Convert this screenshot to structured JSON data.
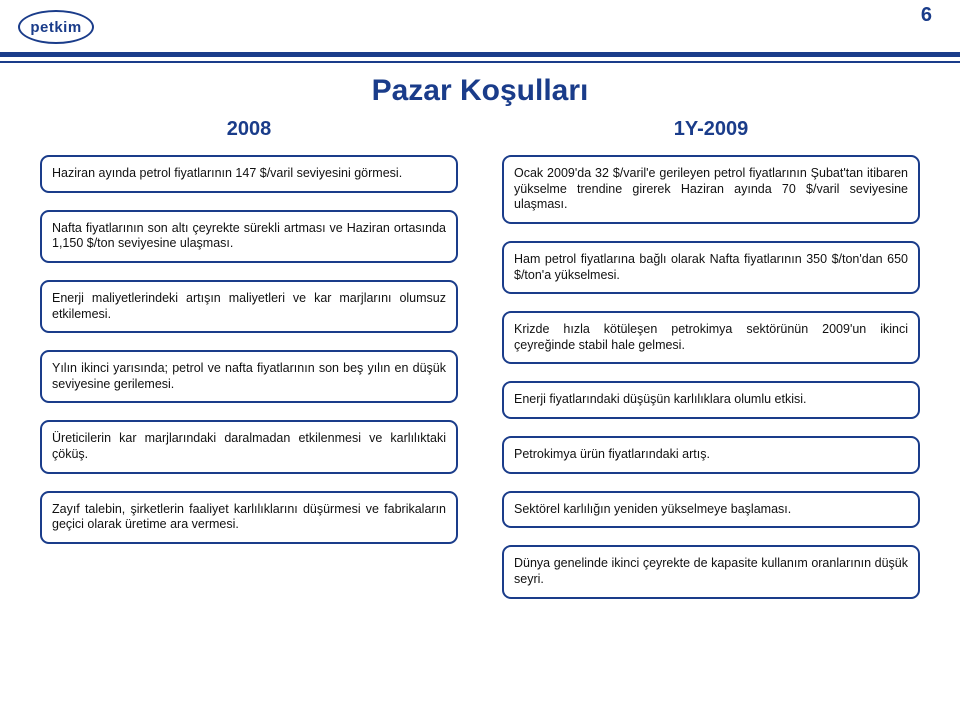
{
  "page_number": "6",
  "logo_text": "petkim",
  "title": "Pazar Koşulları",
  "colors": {
    "primary": "#1a3c8a",
    "background": "#ffffff",
    "text": "#111111"
  },
  "columns": {
    "left": {
      "header": "2008",
      "boxes": [
        "Haziran ayında petrol fiyatlarının 147 $/varil seviyesini görmesi.",
        "Nafta fiyatlarının son altı çeyrekte sürekli artması ve Haziran ortasında 1,150 $/ton seviyesine ulaşması.",
        "Enerji maliyetlerindeki artışın maliyetleri ve kar marjlarını olumsuz etkilemesi.",
        "Yılın ikinci yarısında; petrol ve nafta fiyatlarının son beş yılın en düşük seviyesine gerilemesi.",
        "Üreticilerin kar marjlarındaki daralmadan etkilenmesi ve karlılıktaki çöküş.",
        "Zayıf talebin, şirketlerin faaliyet karlılıklarını düşürmesi ve fabrikaların geçici olarak üretime ara vermesi."
      ]
    },
    "right": {
      "header": "1Y-2009",
      "boxes": [
        "Ocak 2009'da 32 $/varil'e gerileyen petrol fiyatlarının Şubat'tan itibaren yükselme trendine girerek Haziran ayında 70 $/varil seviyesine ulaşması.",
        "Ham petrol fiyatlarına bağlı olarak Nafta fiyatlarının 350 $/ton'dan 650 $/ton'a yükselmesi.",
        "Krizde hızla kötüleşen petrokimya sektörünün 2009'un ikinci çeyreğinde stabil hale gelmesi.",
        "Enerji fiyatlarındaki düşüşün karlılıklara olumlu etkisi.",
        "Petrokimya ürün fiyatlarındaki artış.",
        "Sektörel karlılığın yeniden yükselmeye başlaması.",
        "Dünya genelinde ikinci çeyrekte de kapasite kullanım oranlarının düşük seyri."
      ]
    }
  }
}
